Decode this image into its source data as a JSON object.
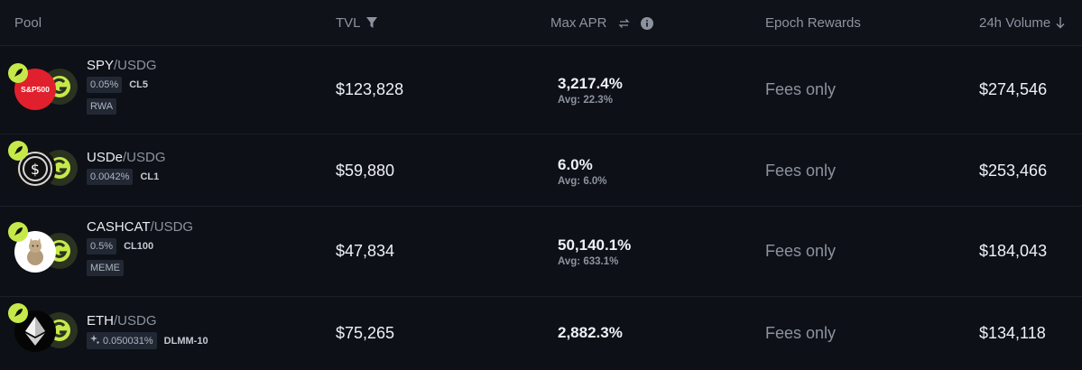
{
  "header": {
    "pool": "Pool",
    "tvl": "TVL",
    "max_apr": "Max APR",
    "epoch_rewards": "Epoch Rewards",
    "volume_24h": "24h Volume"
  },
  "colors": {
    "background": "#0d1016",
    "accent_badge": "#c6e94a",
    "muted_text": "#8c939f"
  },
  "rows": [
    {
      "base": "SPY",
      "quote": "/USDG",
      "fee": "0.05%",
      "type": "CL5",
      "tag": "RWA",
      "token_label": "S&P500",
      "tvl": "$123,828",
      "apr": "3,217.4%",
      "apr_avg": "Avg: 22.3%",
      "rewards": "Fees only",
      "volume": "$274,546"
    },
    {
      "base": "USDe",
      "quote": "/USDG",
      "fee": "0.0042%",
      "type": "CL1",
      "tvl": "$59,880",
      "apr": "6.0%",
      "apr_avg": "Avg: 6.0%",
      "rewards": "Fees only",
      "volume": "$253,466"
    },
    {
      "base": "CASHCAT",
      "quote": "/USDG",
      "fee": "0.5%",
      "type": "CL100",
      "tag": "MEME",
      "tvl": "$47,834",
      "apr": "50,140.1%",
      "apr_avg": "Avg: 633.1%",
      "rewards": "Fees only",
      "volume": "$184,043"
    },
    {
      "base": "ETH",
      "quote": "/USDG",
      "fee": "0.050031%",
      "type": "DLMM-10",
      "tvl": "$75,265",
      "apr": "2,882.3%",
      "rewards": "Fees only",
      "volume": "$134,118"
    }
  ]
}
